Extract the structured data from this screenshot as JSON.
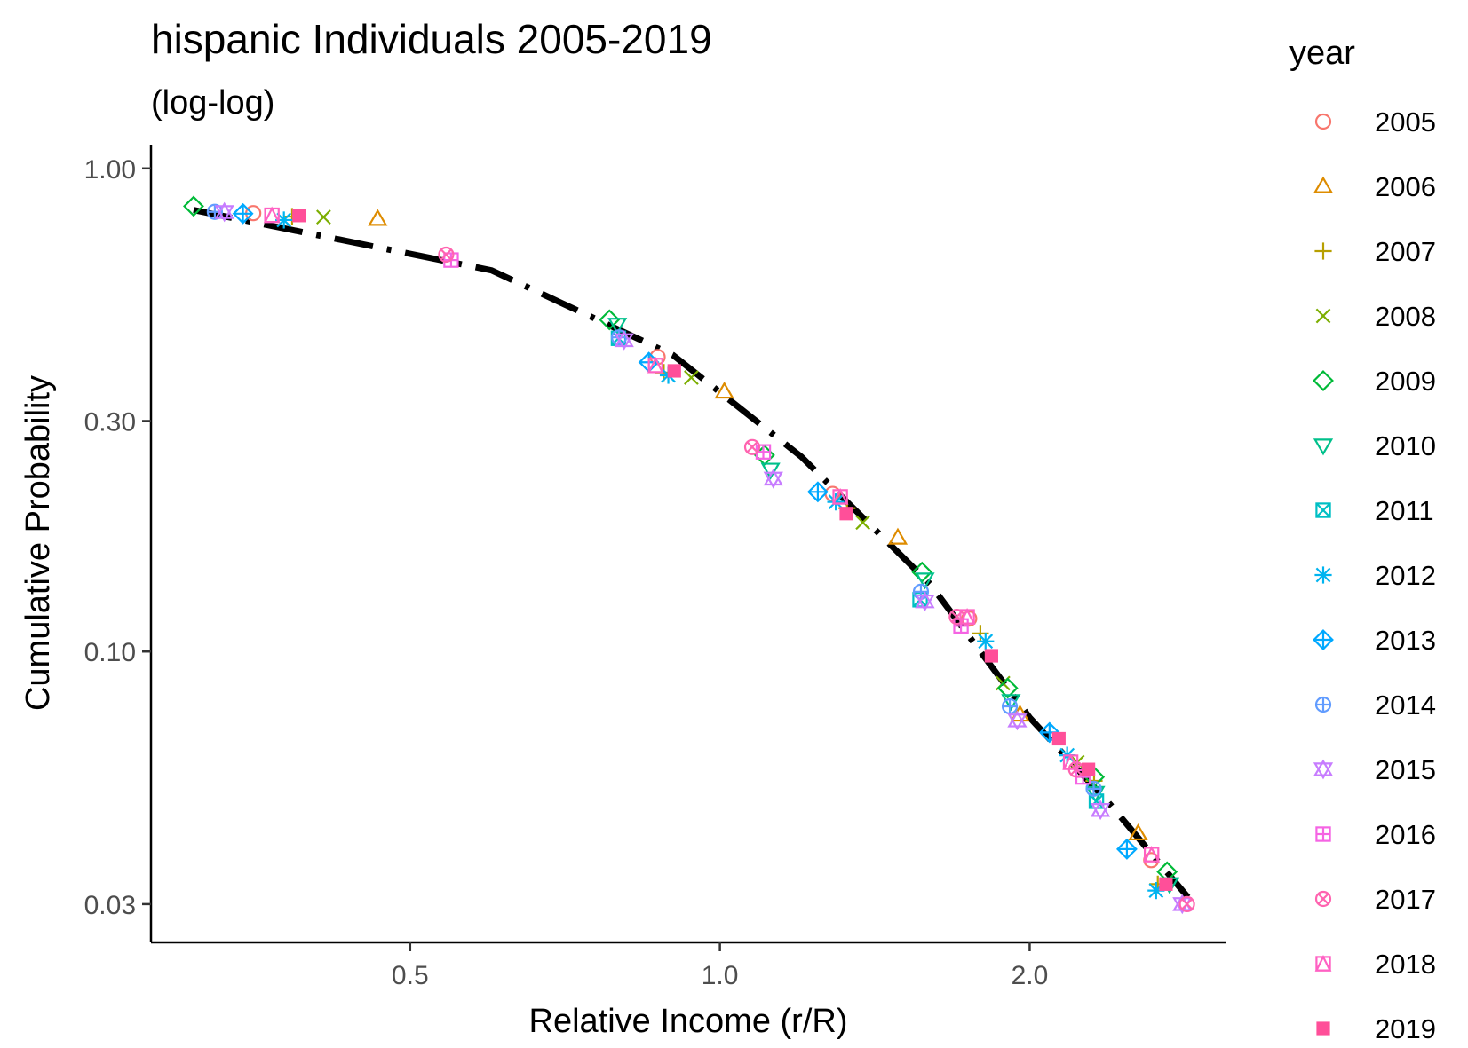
{
  "chart_data": {
    "type": "scatter",
    "title": "hispanic Individuals 2005-2019",
    "subtitle": "(log-log)",
    "xlabel": "Relative Income (r/R)",
    "ylabel": "Cumulative Probability",
    "x_scale": "log",
    "y_scale": "log",
    "xlim": [
      0.28,
      3.1
    ],
    "ylim": [
      0.025,
      1.12
    ],
    "x_ticks": [
      {
        "value": 0.5,
        "label": "0.5"
      },
      {
        "value": 1.0,
        "label": "1.0"
      },
      {
        "value": 2.0,
        "label": "2.0"
      }
    ],
    "y_ticks": [
      {
        "value": 1.0,
        "label": "1.00"
      },
      {
        "value": 0.3,
        "label": "0.30"
      },
      {
        "value": 0.1,
        "label": "0.10"
      },
      {
        "value": 0.03,
        "label": "0.03"
      }
    ],
    "grid": false,
    "legend": {
      "title": "year",
      "position": "right"
    },
    "fit_line": {
      "style": "dash-dot",
      "color": "#000000",
      "x": [
        0.308,
        0.6,
        0.9,
        1.2,
        1.6,
        2.0,
        2.4,
        2.85
      ],
      "y": [
        0.82,
        0.615,
        0.411,
        0.253,
        0.138,
        0.073,
        0.048,
        0.031
      ]
    },
    "series": [
      {
        "name": "2005",
        "color": "#F8766D",
        "shape": "circle",
        "x": [
          0.352,
          0.87,
          1.287,
          1.747,
          2.625
        ],
        "y": [
          0.808,
          0.407,
          0.212,
          0.117,
          0.037
        ]
      },
      {
        "name": "2006",
        "color": "#DE8C00",
        "shape": "triangle",
        "x": [
          0.465,
          1.01,
          1.489,
          1.957,
          2.549
        ],
        "y": [
          0.786,
          0.345,
          0.172,
          0.074,
          0.042
        ]
      },
      {
        "name": "2007",
        "color": "#B79F00",
        "shape": "plus",
        "x": [
          0.384,
          0.882,
          1.329,
          1.791,
          2.31,
          2.664
        ],
        "y": [
          0.795,
          0.378,
          0.198,
          0.109,
          0.054,
          0.033
        ]
      },
      {
        "name": "2008",
        "color": "#7CAE00",
        "shape": "x",
        "x": [
          0.412,
          0.938,
          1.377,
          1.884,
          2.225
        ],
        "y": [
          0.793,
          0.369,
          0.185,
          0.086,
          0.059
        ]
      },
      {
        "name": "2009",
        "color": "#00BA38",
        "shape": "diamond",
        "x": [
          0.308,
          0.781,
          1.105,
          1.572,
          1.904,
          2.311,
          2.72
        ],
        "y": [
          0.835,
          0.486,
          0.255,
          0.146,
          0.084,
          0.055,
          0.035
        ]
      },
      {
        "name": "2010",
        "color": "#00C08B",
        "shape": "triangle-down",
        "x": [
          0.795,
          1.12,
          1.582,
          1.918,
          2.317,
          2.735
        ],
        "y": [
          0.475,
          0.238,
          0.141,
          0.079,
          0.051,
          0.033
        ]
      },
      {
        "name": "2011",
        "color": "#00BFC4",
        "shape": "square-x",
        "x": [
          0.797,
          1.565,
          2.322
        ],
        "y": [
          0.445,
          0.128,
          0.049
        ]
      },
      {
        "name": "2012",
        "color": "#00B4F0",
        "shape": "asterisk",
        "x": [
          0.377,
          0.891,
          1.296,
          1.812,
          2.175,
          2.654
        ],
        "y": [
          0.782,
          0.373,
          0.204,
          0.105,
          0.061,
          0.032
        ]
      },
      {
        "name": "2013",
        "color": "#00A9FF",
        "shape": "diamond-plus",
        "x": [
          0.344,
          0.853,
          1.245,
          2.091,
          2.486
        ],
        "y": [
          0.806,
          0.397,
          0.214,
          0.068,
          0.039
        ]
      },
      {
        "name": "2014",
        "color": "#619CFF",
        "shape": "circle-plus",
        "x": [
          0.323,
          0.798,
          1.568,
          1.913,
          2.308
        ],
        "y": [
          0.813,
          0.447,
          0.133,
          0.077,
          0.052
        ]
      },
      {
        "name": "2015",
        "color": "#C77CFF",
        "shape": "star",
        "x": [
          0.33,
          0.807,
          1.127,
          1.582,
          1.945,
          2.343,
          2.814
        ],
        "y": [
          0.812,
          0.441,
          0.228,
          0.127,
          0.072,
          0.047,
          0.03
        ]
      },
      {
        "name": "2016",
        "color": "#F564E3",
        "shape": "square-plus",
        "x": [
          0.548,
          1.102,
          1.715,
          2.254
        ],
        "y": [
          0.646,
          0.259,
          0.113,
          0.055
        ]
      },
      {
        "name": "2017",
        "color": "#FF64B0",
        "shape": "circle-x",
        "x": [
          0.542,
          1.075,
          1.699,
          2.219,
          2.844
        ],
        "y": [
          0.663,
          0.265,
          0.118,
          0.057,
          0.03
        ]
      },
      {
        "name": "2018",
        "color": "#FF61C3",
        "shape": "square-triangle",
        "x": [
          0.367,
          0.866,
          1.309,
          1.739,
          2.192,
          2.627
        ],
        "y": [
          0.8,
          0.391,
          0.209,
          0.118,
          0.059,
          0.038
        ]
      },
      {
        "name": "2019",
        "color": "#FF4F99",
        "shape": "square-filled",
        "x": [
          0.39,
          0.903,
          1.327,
          1.836,
          2.135,
          2.281,
          2.713
        ],
        "y": [
          0.799,
          0.381,
          0.193,
          0.098,
          0.066,
          0.057,
          0.033
        ]
      }
    ]
  }
}
